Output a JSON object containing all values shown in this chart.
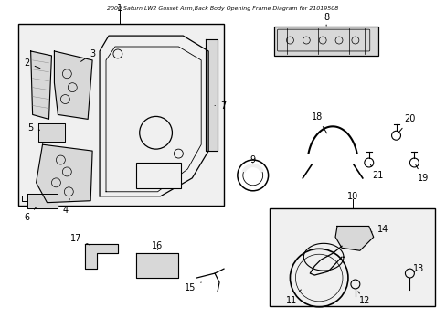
{
  "title": "2000 Saturn LW2 Gusset Asm,Back Body Opening Frame Diagram for 21019508",
  "bg_color": "#f0f0f0",
  "white": "#ffffff",
  "light_gray": "#d8d8d8",
  "dark_line": "#000000"
}
